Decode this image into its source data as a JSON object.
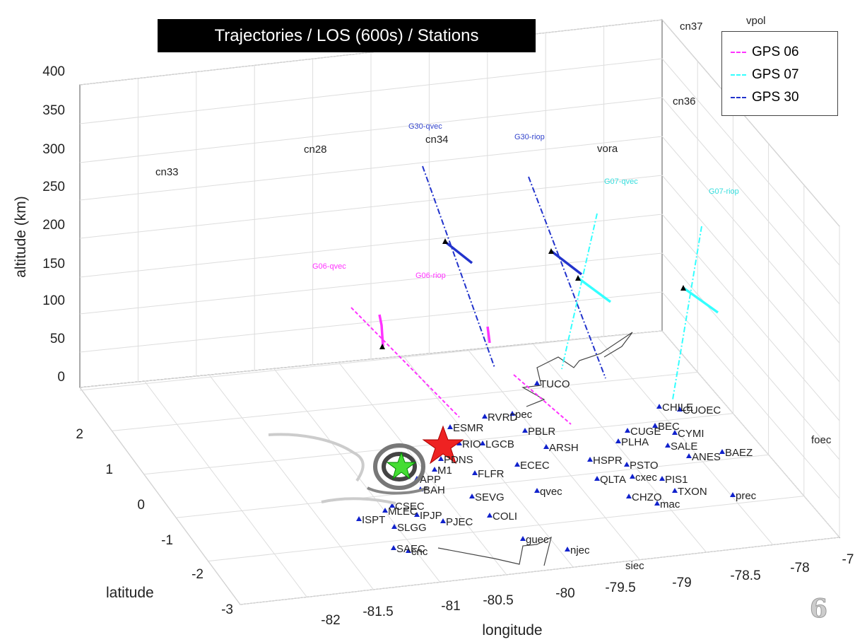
{
  "title": "Trajectories / LOS (600s) / Stations",
  "page_number": "6",
  "chart_data": {
    "type": "scatter3d",
    "xlabel": "longitude",
    "ylabel": "latitude",
    "zlabel": "altitude (km)",
    "xlim": [
      -82.5,
      -77.5
    ],
    "ylim": [
      -3,
      2.5
    ],
    "zlim": [
      0,
      400
    ],
    "x_ticks": [
      "-82",
      "-81.5",
      "-81",
      "-80.5",
      "-80",
      "-79.5",
      "-79",
      "-78.5",
      "-78",
      "-7"
    ],
    "y_ticks": [
      "2",
      "1",
      "0",
      "-1",
      "-2",
      "-3"
    ],
    "z_ticks": [
      "400",
      "350",
      "300",
      "250",
      "200",
      "150",
      "100",
      "50",
      "0"
    ],
    "grid": true,
    "legend_position": "top-right",
    "series": [
      {
        "name": "GPS 06",
        "color": "#ff33ff"
      },
      {
        "name": "GPS 07",
        "color": "#33ffff"
      },
      {
        "name": "GPS 30",
        "color": "#2233cc"
      }
    ],
    "trajectory_labels": [
      {
        "text": "G30-qvec",
        "color": "#3344cc"
      },
      {
        "text": "G30-riop",
        "color": "#3344cc"
      },
      {
        "text": "G07-qvec",
        "color": "#33dddd"
      },
      {
        "text": "G07-riop",
        "color": "#33dddd"
      },
      {
        "text": "G06-qvec",
        "color": "#ff33ff"
      },
      {
        "text": "G06-riop",
        "color": "#ff33ff"
      }
    ],
    "wall_labels": [
      "cn33",
      "cn28",
      "cn34",
      "vora",
      "cn37",
      "vpol",
      "cn36",
      "foec",
      "siec"
    ],
    "stations": [
      "TUCO",
      "CHILE",
      "CUOEC",
      "RVRD",
      "pec",
      "ESMR",
      "PBLR",
      "BEC",
      "CUGE",
      "CYMI",
      "LGCB",
      "PLHA",
      "ARSH",
      "SALE",
      "BAEZ",
      "ANES",
      "RIO",
      "PDNS",
      "ECEC",
      "HSPR",
      "M1",
      "FLFR",
      "PSTO",
      "QLTA",
      "cxec",
      "PIS1",
      "APP",
      "BAH",
      "SEVG",
      "qvec",
      "CHZO",
      "TXON",
      "prec",
      "mac",
      "ISPT",
      "MLEC",
      "CSEC",
      "IPJP",
      "PJEC",
      "COLI",
      "SLGG",
      "guec",
      "njec",
      "SAEC",
      "cnc"
    ]
  }
}
